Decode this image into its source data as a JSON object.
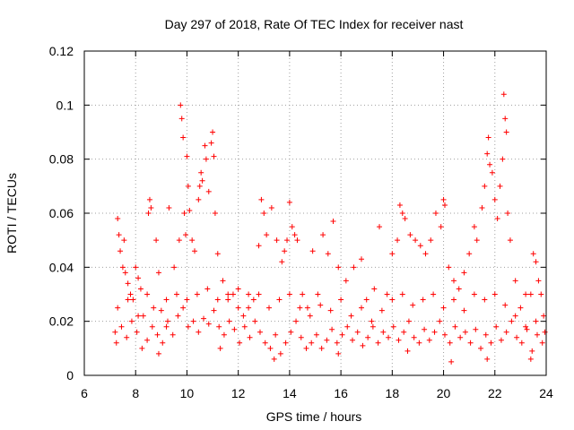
{
  "chart_data": {
    "type": "scatter",
    "title": "Day 297 of 2018, Rate Of TEC Index for receiver nast",
    "xlabel": "GPS time / hours",
    "ylabel": "ROTI / TECUs",
    "xlim": [
      6,
      24
    ],
    "ylim": [
      0,
      0.12
    ],
    "x_ticks": [
      "6",
      "8",
      "10",
      "12",
      "14",
      "16",
      "18",
      "20",
      "22",
      "24"
    ],
    "y_ticks": [
      "0",
      "0.02",
      "0.04",
      "0.06",
      "0.08",
      "0.1",
      "0.12"
    ],
    "grid": true,
    "marker": "+",
    "series": [
      {
        "color": "#ff0000",
        "points": [
          [
            7.2,
            0.016
          ],
          [
            7.3,
            0.058
          ],
          [
            7.35,
            0.052
          ],
          [
            7.4,
            0.046
          ],
          [
            7.5,
            0.04
          ],
          [
            7.55,
            0.05
          ],
          [
            7.6,
            0.038
          ],
          [
            7.7,
            0.034
          ],
          [
            7.8,
            0.03
          ],
          [
            7.9,
            0.028
          ],
          [
            8.0,
            0.04
          ],
          [
            8.1,
            0.036
          ],
          [
            8.2,
            0.032
          ],
          [
            8.3,
            0.022
          ],
          [
            8.45,
            0.03
          ],
          [
            8.5,
            0.06
          ],
          [
            8.55,
            0.065
          ],
          [
            8.6,
            0.062
          ],
          [
            8.8,
            0.05
          ],
          [
            8.9,
            0.038
          ],
          [
            9.0,
            0.024
          ],
          [
            9.2,
            0.028
          ],
          [
            9.3,
            0.062
          ],
          [
            9.5,
            0.04
          ],
          [
            9.7,
            0.05
          ],
          [
            9.75,
            0.1
          ],
          [
            9.8,
            0.095
          ],
          [
            9.85,
            0.088
          ],
          [
            9.9,
            0.06
          ],
          [
            9.95,
            0.052
          ],
          [
            10.0,
            0.081
          ],
          [
            10.05,
            0.07
          ],
          [
            10.1,
            0.061
          ],
          [
            10.2,
            0.05
          ],
          [
            10.3,
            0.046
          ],
          [
            10.45,
            0.065
          ],
          [
            10.5,
            0.07
          ],
          [
            10.55,
            0.075
          ],
          [
            10.6,
            0.072
          ],
          [
            10.7,
            0.085
          ],
          [
            10.75,
            0.08
          ],
          [
            10.85,
            0.068
          ],
          [
            10.95,
            0.086
          ],
          [
            11.0,
            0.09
          ],
          [
            11.05,
            0.081
          ],
          [
            11.1,
            0.06
          ],
          [
            11.2,
            0.045
          ],
          [
            11.4,
            0.035
          ],
          [
            11.6,
            0.028
          ],
          [
            11.8,
            0.03
          ],
          [
            12.0,
            0.025
          ],
          [
            12.2,
            0.022
          ],
          [
            12.4,
            0.03
          ],
          [
            12.6,
            0.028
          ],
          [
            12.8,
            0.048
          ],
          [
            12.9,
            0.065
          ],
          [
            13.0,
            0.06
          ],
          [
            13.1,
            0.052
          ],
          [
            13.3,
            0.062
          ],
          [
            13.5,
            0.05
          ],
          [
            13.7,
            0.042
          ],
          [
            13.8,
            0.046
          ],
          [
            13.9,
            0.05
          ],
          [
            14.0,
            0.064
          ],
          [
            14.1,
            0.055
          ],
          [
            14.2,
            0.052
          ],
          [
            14.3,
            0.05
          ],
          [
            14.5,
            0.03
          ],
          [
            14.7,
            0.025
          ],
          [
            14.9,
            0.046
          ],
          [
            15.1,
            0.03
          ],
          [
            15.3,
            0.052
          ],
          [
            15.5,
            0.045
          ],
          [
            15.7,
            0.057
          ],
          [
            15.9,
            0.04
          ],
          [
            16.2,
            0.035
          ],
          [
            16.5,
            0.04
          ],
          [
            16.8,
            0.043
          ],
          [
            17.0,
            0.028
          ],
          [
            17.3,
            0.032
          ],
          [
            17.5,
            0.055
          ],
          [
            17.8,
            0.03
          ],
          [
            18.0,
            0.045
          ],
          [
            18.2,
            0.05
          ],
          [
            18.3,
            0.063
          ],
          [
            18.4,
            0.06
          ],
          [
            18.5,
            0.058
          ],
          [
            18.7,
            0.052
          ],
          [
            18.9,
            0.05
          ],
          [
            19.1,
            0.048
          ],
          [
            19.3,
            0.045
          ],
          [
            19.5,
            0.05
          ],
          [
            19.7,
            0.06
          ],
          [
            19.9,
            0.055
          ],
          [
            20.0,
            0.065
          ],
          [
            20.05,
            0.063
          ],
          [
            20.2,
            0.04
          ],
          [
            20.4,
            0.035
          ],
          [
            20.6,
            0.032
          ],
          [
            20.8,
            0.038
          ],
          [
            21.0,
            0.045
          ],
          [
            21.2,
            0.055
          ],
          [
            21.3,
            0.05
          ],
          [
            21.5,
            0.062
          ],
          [
            21.6,
            0.07
          ],
          [
            21.7,
            0.082
          ],
          [
            21.75,
            0.088
          ],
          [
            21.8,
            0.078
          ],
          [
            21.9,
            0.075
          ],
          [
            22.0,
            0.065
          ],
          [
            22.1,
            0.058
          ],
          [
            22.2,
            0.07
          ],
          [
            22.3,
            0.08
          ],
          [
            22.35,
            0.104
          ],
          [
            22.4,
            0.095
          ],
          [
            22.45,
            0.09
          ],
          [
            22.5,
            0.06
          ],
          [
            22.6,
            0.05
          ],
          [
            22.8,
            0.035
          ],
          [
            23.0,
            0.025
          ],
          [
            23.2,
            0.03
          ],
          [
            23.4,
            0.03
          ],
          [
            23.5,
            0.045
          ],
          [
            23.6,
            0.042
          ],
          [
            23.7,
            0.035
          ],
          [
            23.8,
            0.03
          ],
          [
            23.9,
            0.022
          ],
          [
            7.25,
            0.012
          ],
          [
            7.45,
            0.018
          ],
          [
            7.65,
            0.014
          ],
          [
            7.85,
            0.02
          ],
          [
            8.05,
            0.016
          ],
          [
            8.25,
            0.01
          ],
          [
            8.45,
            0.013
          ],
          [
            8.65,
            0.018
          ],
          [
            8.85,
            0.015
          ],
          [
            9.05,
            0.012
          ],
          [
            9.25,
            0.02
          ],
          [
            9.45,
            0.015
          ],
          [
            9.65,
            0.022
          ],
          [
            9.85,
            0.025
          ],
          [
            10.05,
            0.018
          ],
          [
            10.25,
            0.02
          ],
          [
            10.45,
            0.016
          ],
          [
            10.65,
            0.021
          ],
          [
            10.85,
            0.019
          ],
          [
            11.05,
            0.024
          ],
          [
            11.25,
            0.018
          ],
          [
            11.45,
            0.015
          ],
          [
            11.65,
            0.02
          ],
          [
            11.85,
            0.017
          ],
          [
            12.05,
            0.012
          ],
          [
            12.25,
            0.018
          ],
          [
            12.45,
            0.014
          ],
          [
            12.65,
            0.02
          ],
          [
            12.85,
            0.016
          ],
          [
            13.05,
            0.012
          ],
          [
            13.25,
            0.01
          ],
          [
            13.45,
            0.015
          ],
          [
            13.65,
            0.008
          ],
          [
            13.85,
            0.012
          ],
          [
            14.05,
            0.016
          ],
          [
            14.25,
            0.02
          ],
          [
            14.45,
            0.014
          ],
          [
            14.65,
            0.01
          ],
          [
            14.85,
            0.012
          ],
          [
            15.05,
            0.015
          ],
          [
            15.25,
            0.01
          ],
          [
            15.45,
            0.013
          ],
          [
            15.65,
            0.017
          ],
          [
            15.85,
            0.012
          ],
          [
            16.05,
            0.015
          ],
          [
            16.25,
            0.018
          ],
          [
            16.45,
            0.013
          ],
          [
            16.65,
            0.016
          ],
          [
            16.85,
            0.011
          ],
          [
            17.05,
            0.014
          ],
          [
            17.25,
            0.018
          ],
          [
            17.45,
            0.012
          ],
          [
            17.65,
            0.016
          ],
          [
            17.85,
            0.014
          ],
          [
            18.05,
            0.018
          ],
          [
            18.25,
            0.013
          ],
          [
            18.45,
            0.016
          ],
          [
            18.65,
            0.02
          ],
          [
            18.85,
            0.014
          ],
          [
            19.05,
            0.012
          ],
          [
            19.25,
            0.017
          ],
          [
            19.45,
            0.013
          ],
          [
            19.65,
            0.016
          ],
          [
            19.85,
            0.02
          ],
          [
            20.05,
            0.015
          ],
          [
            20.25,
            0.012
          ],
          [
            20.45,
            0.018
          ],
          [
            20.65,
            0.014
          ],
          [
            20.85,
            0.016
          ],
          [
            21.05,
            0.012
          ],
          [
            21.25,
            0.017
          ],
          [
            21.45,
            0.01
          ],
          [
            21.65,
            0.015
          ],
          [
            21.85,
            0.012
          ],
          [
            22.05,
            0.018
          ],
          [
            22.25,
            0.013
          ],
          [
            22.45,
            0.016
          ],
          [
            22.65,
            0.02
          ],
          [
            22.85,
            0.014
          ],
          [
            23.05,
            0.012
          ],
          [
            23.25,
            0.017
          ],
          [
            23.45,
            0.009
          ],
          [
            23.65,
            0.015
          ],
          [
            23.85,
            0.012
          ],
          [
            23.95,
            0.016
          ],
          [
            7.3,
            0.025
          ],
          [
            7.7,
            0.028
          ],
          [
            8.1,
            0.022
          ],
          [
            8.7,
            0.025
          ],
          [
            9.2,
            0.018
          ],
          [
            9.6,
            0.03
          ],
          [
            10.0,
            0.028
          ],
          [
            10.4,
            0.03
          ],
          [
            10.8,
            0.032
          ],
          [
            11.2,
            0.028
          ],
          [
            11.6,
            0.03
          ],
          [
            12.0,
            0.032
          ],
          [
            12.4,
            0.025
          ],
          [
            12.8,
            0.03
          ],
          [
            13.2,
            0.025
          ],
          [
            13.6,
            0.028
          ],
          [
            14.0,
            0.03
          ],
          [
            14.4,
            0.025
          ],
          [
            14.8,
            0.022
          ],
          [
            15.2,
            0.026
          ],
          [
            15.6,
            0.024
          ],
          [
            16.0,
            0.028
          ],
          [
            16.4,
            0.022
          ],
          [
            16.8,
            0.025
          ],
          [
            17.2,
            0.02
          ],
          [
            17.6,
            0.024
          ],
          [
            18.0,
            0.028
          ],
          [
            18.4,
            0.03
          ],
          [
            18.8,
            0.026
          ],
          [
            19.2,
            0.028
          ],
          [
            19.6,
            0.03
          ],
          [
            20.0,
            0.025
          ],
          [
            20.4,
            0.028
          ],
          [
            20.8,
            0.024
          ],
          [
            21.2,
            0.03
          ],
          [
            21.6,
            0.028
          ],
          [
            22.0,
            0.03
          ],
          [
            22.4,
            0.026
          ],
          [
            22.8,
            0.022
          ],
          [
            23.2,
            0.018
          ],
          [
            23.6,
            0.02
          ],
          [
            8.9,
            0.008
          ],
          [
            11.3,
            0.01
          ],
          [
            13.4,
            0.006
          ],
          [
            15.9,
            0.008
          ],
          [
            18.6,
            0.009
          ],
          [
            20.3,
            0.005
          ],
          [
            21.7,
            0.006
          ],
          [
            23.4,
            0.006
          ]
        ]
      }
    ]
  }
}
